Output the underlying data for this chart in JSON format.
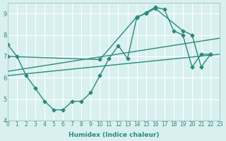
{
  "xlabel": "Humidex (Indice chaleur)",
  "ylabel": "",
  "bg_color": "#d8f0f0",
  "line_color": "#2d8a7a",
  "xlim": [
    0,
    23
  ],
  "ylim": [
    4,
    9.5
  ],
  "yticks": [
    4,
    5,
    6,
    7,
    8,
    9
  ],
  "xticks": [
    0,
    1,
    2,
    3,
    4,
    5,
    6,
    7,
    8,
    9,
    10,
    11,
    12,
    13,
    14,
    15,
    16,
    17,
    18,
    19,
    20,
    21,
    22,
    23
  ],
  "series1_x": [
    0,
    1,
    2,
    3,
    4,
    5,
    6,
    7,
    8,
    9,
    10,
    11,
    12,
    13,
    14,
    15,
    16,
    17,
    18,
    19,
    20,
    21,
    22
  ],
  "series1_y": [
    7.55,
    7.0,
    6.1,
    5.5,
    4.9,
    4.5,
    4.5,
    4.9,
    4.9,
    5.3,
    6.1,
    6.9,
    7.5,
    6.9,
    8.8,
    9.05,
    9.3,
    9.2,
    8.2,
    8.0,
    6.5,
    7.1,
    7.1
  ],
  "series2_x": [
    0,
    23
  ],
  "series2_y": [
    6.3,
    7.85
  ],
  "series3_x": [
    0,
    23
  ],
  "series3_y": [
    6.1,
    7.1
  ],
  "series4_x": [
    0,
    10,
    14,
    15,
    16,
    19,
    20,
    21,
    22
  ],
  "series4_y": [
    7.0,
    6.85,
    8.85,
    9.0,
    9.25,
    8.2,
    8.0,
    6.5,
    7.1
  ]
}
